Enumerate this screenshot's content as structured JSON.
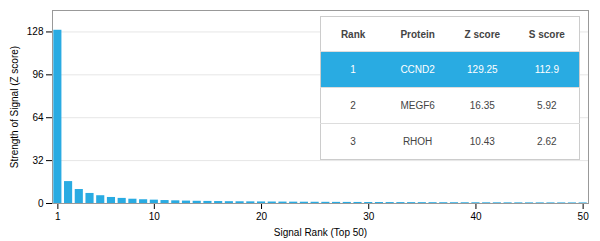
{
  "chart_data": {
    "type": "bar",
    "xlabel": "Signal Rank (Top 50)",
    "ylabel": "Strength of Signal (Z score)",
    "x": [
      1,
      2,
      3,
      4,
      5,
      6,
      7,
      8,
      9,
      10,
      11,
      12,
      13,
      14,
      15,
      16,
      17,
      18,
      19,
      20,
      21,
      22,
      23,
      24,
      25,
      26,
      27,
      28,
      29,
      30,
      31,
      32,
      33,
      34,
      35,
      36,
      37,
      38,
      39,
      40,
      41,
      42,
      43,
      44,
      45,
      46,
      47,
      48,
      49,
      50
    ],
    "values": [
      129.25,
      16.35,
      10.43,
      7.5,
      5.8,
      4.5,
      3.8,
      3.2,
      2.8,
      2.5,
      2.2,
      2.0,
      1.8,
      1.65,
      1.55,
      1.45,
      1.35,
      1.28,
      1.22,
      1.16,
      1.1,
      1.05,
      1.0,
      0.96,
      0.92,
      0.88,
      0.84,
      0.81,
      0.78,
      0.75,
      0.72,
      0.69,
      0.67,
      0.65,
      0.63,
      0.61,
      0.59,
      0.57,
      0.55,
      0.54,
      0.52,
      0.51,
      0.49,
      0.48,
      0.47,
      0.46,
      0.45,
      0.44,
      0.43,
      0.42
    ],
    "color": "#29ABE2",
    "xlim": [
      0.5,
      50.5
    ],
    "ylim": [
      0,
      144
    ],
    "xticks": [
      1,
      10,
      20,
      30,
      40,
      50
    ],
    "yticks": [
      0,
      32,
      64,
      96,
      128
    ],
    "grid": true,
    "table": {
      "columns": [
        "Rank",
        "Protein",
        "Z score",
        "S score"
      ],
      "rows": [
        [
          "1",
          "CCND2",
          "129.25",
          "112.9"
        ],
        [
          "2",
          "MEGF6",
          "16.35",
          "5.92"
        ],
        [
          "3",
          "RHOH",
          "10.43",
          "2.62"
        ]
      ],
      "color": "#29ABE2"
    }
  }
}
